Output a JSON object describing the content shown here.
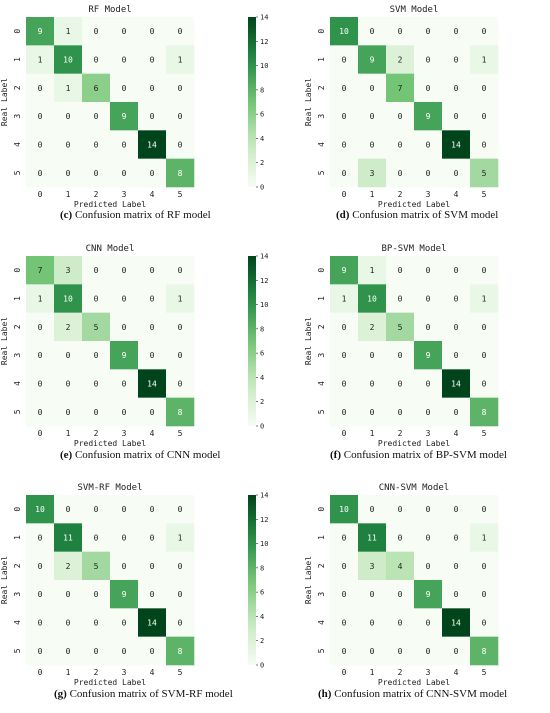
{
  "figure": {
    "row_labels": [
      "0",
      "1",
      "2",
      "3",
      "4",
      "5"
    ],
    "col_labels": [
      "0",
      "1",
      "2",
      "3",
      "4",
      "5"
    ],
    "xlabel": "Predicted Label",
    "ylabel": "Real Label",
    "colorbar_ticks": [
      "0",
      "2",
      "4",
      "6",
      "8",
      "10",
      "12",
      "14"
    ],
    "color_low": "#f7fcf5",
    "color_high": "#00441b"
  },
  "chart_data": [
    {
      "type": "heatmap",
      "title": "RF Model",
      "caption_letter": "(c)",
      "caption_text": " Confusion matrix of RF model",
      "xlabel": "Predicted Label",
      "ylabel": "Real Label",
      "vmin": 0,
      "vmax": 14,
      "matrix": [
        [
          9,
          1,
          0,
          0,
          0,
          0
        ],
        [
          1,
          10,
          0,
          0,
          0,
          1
        ],
        [
          0,
          1,
          6,
          0,
          0,
          0
        ],
        [
          0,
          0,
          0,
          9,
          0,
          0
        ],
        [
          0,
          0,
          0,
          0,
          14,
          0
        ],
        [
          0,
          0,
          0,
          0,
          0,
          8
        ]
      ]
    },
    {
      "type": "heatmap",
      "title": "SVM Model",
      "caption_letter": "(d)",
      "caption_text": " Confusion matrix of SVM model",
      "xlabel": "Predicted Label",
      "ylabel": "Real Label",
      "vmin": 0,
      "vmax": 14,
      "matrix": [
        [
          10,
          0,
          0,
          0,
          0,
          0
        ],
        [
          0,
          9,
          2,
          0,
          0,
          1
        ],
        [
          0,
          0,
          7,
          0,
          0,
          0
        ],
        [
          0,
          0,
          0,
          9,
          0,
          0
        ],
        [
          0,
          0,
          0,
          0,
          14,
          0
        ],
        [
          0,
          3,
          0,
          0,
          0,
          5
        ]
      ]
    },
    {
      "type": "heatmap",
      "title": "CNN Model",
      "caption_letter": "(e)",
      "caption_text": " Confusion matrix of CNN model",
      "xlabel": "Predicted Label",
      "ylabel": "Real Label",
      "vmin": 0,
      "vmax": 14,
      "matrix": [
        [
          7,
          3,
          0,
          0,
          0,
          0
        ],
        [
          1,
          10,
          0,
          0,
          0,
          1
        ],
        [
          0,
          2,
          5,
          0,
          0,
          0
        ],
        [
          0,
          0,
          0,
          9,
          0,
          0
        ],
        [
          0,
          0,
          0,
          0,
          14,
          0
        ],
        [
          0,
          0,
          0,
          0,
          0,
          8
        ]
      ]
    },
    {
      "type": "heatmap",
      "title": "BP-SVM Model",
      "caption_letter": "(f)",
      "caption_text": " Confusion matrix of BP-SVM model",
      "xlabel": "Predicted Label",
      "ylabel": "Real Label",
      "vmin": 0,
      "vmax": 14,
      "matrix": [
        [
          9,
          1,
          0,
          0,
          0,
          0
        ],
        [
          1,
          10,
          0,
          0,
          0,
          1
        ],
        [
          0,
          2,
          5,
          0,
          0,
          0
        ],
        [
          0,
          0,
          0,
          9,
          0,
          0
        ],
        [
          0,
          0,
          0,
          0,
          14,
          0
        ],
        [
          0,
          0,
          0,
          0,
          0,
          8
        ]
      ]
    },
    {
      "type": "heatmap",
      "title": "SVM-RF Model",
      "caption_letter": "(g)",
      "caption_text": " Confusion matrix of SVM-RF model",
      "xlabel": "Predicted Label",
      "ylabel": "Real Label",
      "vmin": 0,
      "vmax": 14,
      "matrix": [
        [
          10,
          0,
          0,
          0,
          0,
          0
        ],
        [
          0,
          11,
          0,
          0,
          0,
          1
        ],
        [
          0,
          2,
          5,
          0,
          0,
          0
        ],
        [
          0,
          0,
          0,
          9,
          0,
          0
        ],
        [
          0,
          0,
          0,
          0,
          14,
          0
        ],
        [
          0,
          0,
          0,
          0,
          0,
          8
        ]
      ]
    },
    {
      "type": "heatmap",
      "title": "CNN-SVM Model",
      "caption_letter": "(h)",
      "caption_text": " Confusion matrix of CNN-SVM model",
      "xlabel": "Predicted Label",
      "ylabel": "Real Label",
      "vmin": 0,
      "vmax": 14,
      "matrix": [
        [
          10,
          0,
          0,
          0,
          0,
          0
        ],
        [
          0,
          11,
          0,
          0,
          0,
          1
        ],
        [
          0,
          3,
          4,
          0,
          0,
          0
        ],
        [
          0,
          0,
          0,
          9,
          0,
          0
        ],
        [
          0,
          0,
          0,
          0,
          14,
          0
        ],
        [
          0,
          0,
          0,
          0,
          0,
          8
        ]
      ]
    }
  ]
}
